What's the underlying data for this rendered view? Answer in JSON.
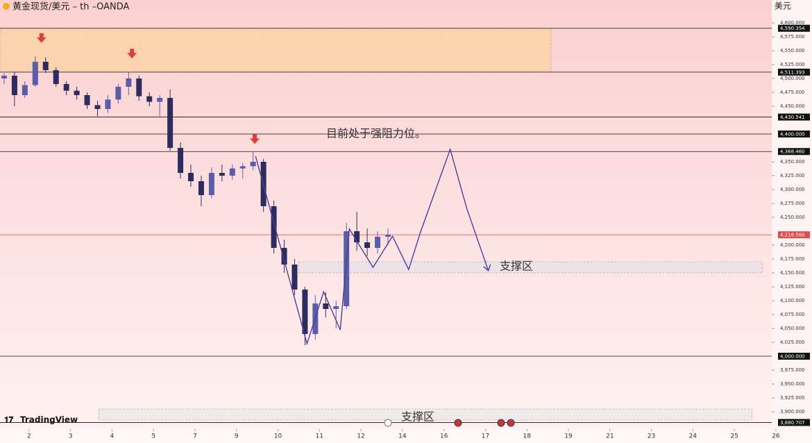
{
  "chart_data": {
    "type": "candlestick",
    "title": "黄金现货/美元 – th –OANDA",
    "currency": "美元",
    "brand": "TradingView",
    "annotation": "目前处于强阻力位。",
    "support_label": "支撑区",
    "up_color": "#5a5da8",
    "down_color": "#2c2c5e",
    "xlim": [
      0.3,
      18.9
    ],
    "ylim": [
      3868.75,
      4641.25
    ],
    "xticks": [
      {
        "value": 1,
        "label": "2"
      },
      {
        "value": 2,
        "label": "3"
      },
      {
        "value": 3,
        "label": "4"
      },
      {
        "value": 4,
        "label": "5"
      },
      {
        "value": 5,
        "label": "7"
      },
      {
        "value": 6,
        "label": "9"
      },
      {
        "value": 7,
        "label": "10"
      },
      {
        "value": 8,
        "label": "11"
      },
      {
        "value": 9,
        "label": "12"
      },
      {
        "value": 10,
        "label": "14"
      },
      {
        "value": 11,
        "label": "16"
      },
      {
        "value": 12,
        "label": "17"
      },
      {
        "value": 13,
        "label": "18"
      },
      {
        "value": 14,
        "label": "19"
      },
      {
        "value": 15,
        "label": "21"
      },
      {
        "value": 16,
        "label": "23"
      },
      {
        "value": 17,
        "label": "24"
      },
      {
        "value": 18,
        "label": "25"
      },
      {
        "value": 19,
        "label": "26"
      }
    ],
    "yticks": [
      {
        "value": 3900,
        "label": "3,900.000"
      },
      {
        "value": 3925,
        "label": "3,925.000"
      },
      {
        "value": 3950,
        "label": "3,950.000"
      },
      {
        "value": 3975,
        "label": "3,975.000"
      },
      {
        "value": 4025,
        "label": "4,025.000"
      },
      {
        "value": 4050,
        "label": "4,050.000"
      },
      {
        "value": 4075,
        "label": "4,075.000"
      },
      {
        "value": 4100,
        "label": "4,100.000"
      },
      {
        "value": 4125,
        "label": "4,125.000"
      },
      {
        "value": 4150,
        "label": "4,150.000"
      },
      {
        "value": 4175,
        "label": "4,175.000"
      },
      {
        "value": 4200,
        "label": "4,200.000"
      },
      {
        "value": 4250,
        "label": "4,250.000"
      },
      {
        "value": 4275,
        "label": "4,275.000"
      },
      {
        "value": 4300,
        "label": "4,300.000"
      },
      {
        "value": 4325,
        "label": "4,325.000"
      },
      {
        "value": 4350,
        "label": "4,350.000"
      },
      {
        "value": 4450,
        "label": "4,450.000"
      },
      {
        "value": 4475,
        "label": "4,475.000"
      },
      {
        "value": 4500,
        "label": "4,500.000"
      },
      {
        "value": 4525,
        "label": "4,525.000"
      },
      {
        "value": 4550,
        "label": "4,550.000"
      },
      {
        "value": 4575,
        "label": "4,575.000"
      },
      {
        "value": 4600,
        "label": "4,600.000"
      }
    ],
    "levels": [
      {
        "value": 4590.354,
        "label": "4,590.354",
        "color": "#111111"
      },
      {
        "value": 4511.393,
        "label": "4,511.393",
        "color": "#111111"
      },
      {
        "value": 4430.541,
        "label": "4,430.541",
        "color": "#111111"
      },
      {
        "value": 4400,
        "label": "4,400.000",
        "color": "#111111"
      },
      {
        "value": 4368.46,
        "label": "4,368.460",
        "color": "#111111"
      },
      {
        "value": 4218.56,
        "label": "4,218.560",
        "color": "#e04a4a"
      },
      {
        "value": 4000,
        "label": "4,000.000",
        "color": "#111111"
      },
      {
        "value": 3880.707,
        "label": "3,880.707",
        "color": "#111111"
      }
    ],
    "zones": [
      {
        "xlim": [
          0.3,
          13.58
        ],
        "ylim": [
          4511.393,
          4590.354
        ],
        "color": "#fbd2a8"
      },
      {
        "xlim": [
          7.5,
          18.67
        ],
        "ylim": [
          4150,
          4170
        ],
        "color": "#e9e3ea"
      },
      {
        "xlim": [
          2.68,
          18.42
        ],
        "ylim": [
          3885,
          3905
        ],
        "color": "#efe9ea"
      }
    ],
    "markers": [
      [
        1.3,
        4564
      ],
      [
        3.48,
        4536
      ],
      [
        6.44,
        4382
      ]
    ],
    "projection": [
      [
        6.46,
        4360
      ],
      [
        7.7,
        4022.5
      ],
      [
        8.1,
        4116
      ],
      [
        8.5,
        4047.5
      ],
      [
        8.72,
        4229
      ],
      [
        9.29,
        4160
      ],
      [
        9.76,
        4216
      ],
      [
        10.15,
        4156
      ],
      [
        10.43,
        4222.5
      ],
      [
        11.15,
        4372.5
      ],
      [
        11.55,
        4266
      ],
      [
        12.07,
        4154
      ]
    ],
    "x": [
      0.4,
      0.65,
      0.9,
      1.15,
      1.4,
      1.65,
      1.9,
      2.15,
      2.4,
      2.65,
      2.9,
      3.15,
      3.4,
      3.65,
      3.9,
      4.15,
      4.4,
      4.65,
      4.9,
      5.15,
      5.4,
      5.65,
      5.9,
      6.15,
      6.4,
      6.65,
      6.9,
      7.15,
      7.4,
      7.65,
      7.9,
      8.15,
      8.4,
      8.65,
      8.9,
      9.15,
      9.4,
      9.65
    ],
    "ohlc": [
      [
        4500,
        4510,
        4490,
        4505
      ],
      [
        4505,
        4512,
        4450,
        4470
      ],
      [
        4470,
        4495,
        4465,
        4488
      ],
      [
        4488,
        4540,
        4485,
        4530
      ],
      [
        4530,
        4538,
        4510,
        4515
      ],
      [
        4515,
        4520,
        4485,
        4490
      ],
      [
        4490,
        4495,
        4470,
        4478
      ],
      [
        4478,
        4485,
        4462,
        4470
      ],
      [
        4470,
        4475,
        4445,
        4452
      ],
      [
        4452,
        4460,
        4432,
        4445
      ],
      [
        4445,
        4470,
        4438,
        4462
      ],
      [
        4462,
        4490,
        4455,
        4485
      ],
      [
        4485,
        4512,
        4470,
        4500
      ],
      [
        4500,
        4505,
        4460,
        4468
      ],
      [
        4468,
        4475,
        4450,
        4458
      ],
      [
        4458,
        4470,
        4432,
        4465
      ],
      [
        4465,
        4480,
        4370,
        4375
      ],
      [
        4375,
        4385,
        4320,
        4330
      ],
      [
        4330,
        4345,
        4305,
        4315
      ],
      [
        4315,
        4325,
        4270,
        4290
      ],
      [
        4290,
        4340,
        4285,
        4330
      ],
      [
        4330,
        4345,
        4315,
        4325
      ],
      [
        4325,
        4345,
        4318,
        4338
      ],
      [
        4338,
        4348,
        4320,
        4342
      ],
      [
        4342,
        4368,
        4335,
        4350
      ],
      [
        4350,
        4355,
        4260,
        4270
      ],
      [
        4270,
        4280,
        4185,
        4195
      ],
      [
        4195,
        4210,
        4150,
        4165
      ],
      [
        4165,
        4175,
        4110,
        4120
      ],
      [
        4120,
        4125,
        4020,
        4040
      ],
      [
        4040,
        4110,
        4030,
        4095
      ],
      [
        4095,
        4115,
        4070,
        4085
      ],
      [
        4085,
        4100,
        4050,
        4090
      ],
      [
        4090,
        4240,
        4085,
        4225
      ],
      [
        4225,
        4260,
        4190,
        4205
      ],
      [
        4205,
        4230,
        4180,
        4195
      ],
      [
        4195,
        4225,
        4185,
        4215
      ],
      [
        4215,
        4230,
        4200,
        4218.56
      ]
    ]
  }
}
